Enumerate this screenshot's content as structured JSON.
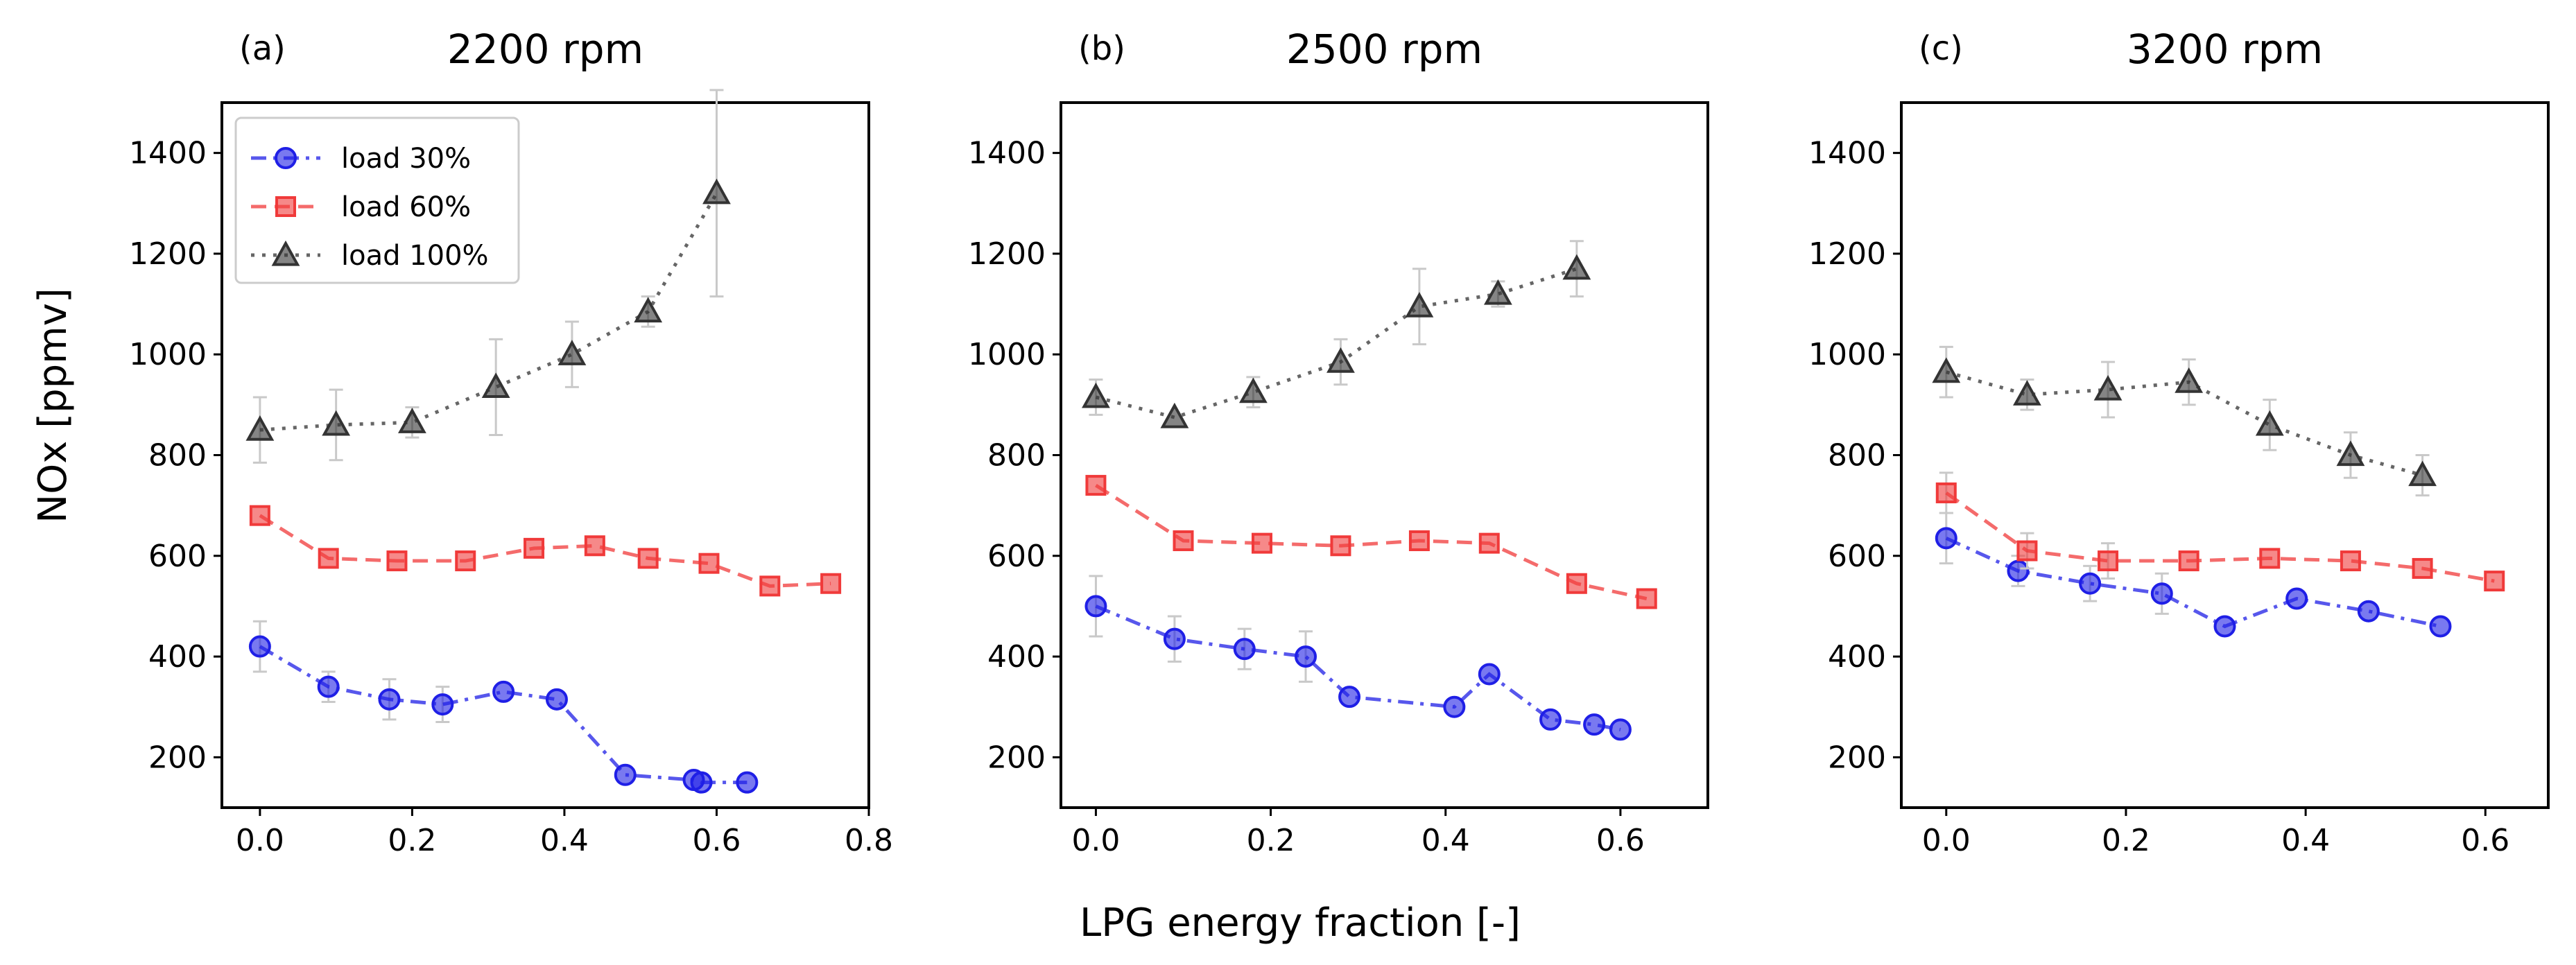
{
  "figure": {
    "xlabel": "LPG energy fraction [-]",
    "ylabel": "NOx [ppmv]"
  },
  "legend": [
    {
      "label": "load 30%",
      "series": "load30"
    },
    {
      "label": "load 60%",
      "series": "load60"
    },
    {
      "label": "load 100%",
      "series": "load100"
    }
  ],
  "series_styles": {
    "load30": {
      "color": "#1f1fe6",
      "marker": "circle",
      "dash": "dashdot"
    },
    "load60": {
      "color": "#f03a3a",
      "marker": "square",
      "dash": "dashed"
    },
    "load100": {
      "color": "#333333",
      "marker": "triangle",
      "dash": "dotted"
    }
  },
  "chart_data": [
    {
      "type": "line",
      "letter": "(a)",
      "title": "2200 rpm",
      "xlim": [
        -0.05,
        0.8
      ],
      "ylim": [
        100,
        1500
      ],
      "xticks": [
        "0.0",
        "0.2",
        "0.4",
        "0.6",
        "0.8"
      ],
      "yticks": [
        "200",
        "400",
        "600",
        "800",
        "1000",
        "1200",
        "1400"
      ],
      "series": [
        {
          "key": "load30",
          "name": "load 30%",
          "x": [
            0.0,
            0.09,
            0.17,
            0.24,
            0.32,
            0.39,
            0.48,
            0.57,
            0.58,
            0.64
          ],
          "y": [
            420,
            340,
            315,
            305,
            330,
            315,
            165,
            155,
            150,
            150
          ],
          "err": [
            50,
            30,
            40,
            35,
            0,
            0,
            0,
            0,
            0,
            0
          ]
        },
        {
          "key": "load60",
          "name": "load 60%",
          "x": [
            0.0,
            0.09,
            0.18,
            0.27,
            0.36,
            0.44,
            0.51,
            0.59,
            0.67,
            0.75
          ],
          "y": [
            680,
            595,
            590,
            590,
            615,
            620,
            595,
            585,
            540,
            545
          ],
          "err": [
            0,
            0,
            0,
            0,
            0,
            0,
            0,
            0,
            0,
            0
          ]
        },
        {
          "key": "load100",
          "name": "load 100%",
          "x": [
            0.0,
            0.1,
            0.2,
            0.31,
            0.41,
            0.51,
            0.6
          ],
          "y": [
            850,
            860,
            865,
            935,
            1000,
            1085,
            1320
          ],
          "err": [
            65,
            70,
            30,
            95,
            65,
            30,
            205
          ]
        }
      ]
    },
    {
      "type": "line",
      "letter": "(b)",
      "title": "2500 rpm",
      "xlim": [
        -0.04,
        0.7
      ],
      "ylim": [
        100,
        1500
      ],
      "xticks": [
        "0.0",
        "0.2",
        "0.4",
        "0.6"
      ],
      "yticks": [
        "200",
        "400",
        "600",
        "800",
        "1000",
        "1200",
        "1400"
      ],
      "series": [
        {
          "key": "load30",
          "name": "load 30%",
          "x": [
            0.0,
            0.09,
            0.17,
            0.24,
            0.29,
            0.41,
            0.45,
            0.52,
            0.57,
            0.6
          ],
          "y": [
            500,
            435,
            415,
            400,
            320,
            300,
            365,
            275,
            265,
            255
          ],
          "err": [
            60,
            45,
            40,
            50,
            0,
            0,
            0,
            0,
            0,
            0
          ]
        },
        {
          "key": "load60",
          "name": "load 60%",
          "x": [
            0.0,
            0.1,
            0.19,
            0.28,
            0.37,
            0.45,
            0.55,
            0.63
          ],
          "y": [
            740,
            630,
            625,
            620,
            630,
            625,
            545,
            515
          ],
          "err": [
            0,
            0,
            0,
            0,
            0,
            0,
            0,
            0
          ]
        },
        {
          "key": "load100",
          "name": "load 100%",
          "x": [
            0.0,
            0.09,
            0.18,
            0.28,
            0.37,
            0.46,
            0.55
          ],
          "y": [
            915,
            875,
            925,
            985,
            1095,
            1120,
            1170
          ],
          "err": [
            35,
            0,
            30,
            45,
            75,
            25,
            55
          ]
        }
      ]
    },
    {
      "type": "line",
      "letter": "(c)",
      "title": "3200 rpm",
      "xlim": [
        -0.05,
        0.67
      ],
      "ylim": [
        100,
        1500
      ],
      "xticks": [
        "0.0",
        "0.2",
        "0.4",
        "0.6"
      ],
      "yticks": [
        "200",
        "400",
        "600",
        "800",
        "1000",
        "1200",
        "1400"
      ],
      "series": [
        {
          "key": "load30",
          "name": "load 30%",
          "x": [
            0.0,
            0.08,
            0.16,
            0.24,
            0.31,
            0.39,
            0.47,
            0.55
          ],
          "y": [
            635,
            570,
            545,
            525,
            460,
            515,
            490,
            460
          ],
          "err": [
            50,
            30,
            35,
            40,
            0,
            0,
            0,
            0
          ]
        },
        {
          "key": "load60",
          "name": "load 60%",
          "x": [
            0.0,
            0.09,
            0.18,
            0.27,
            0.36,
            0.45,
            0.53,
            0.61
          ],
          "y": [
            725,
            610,
            590,
            590,
            595,
            590,
            575,
            550
          ],
          "err": [
            40,
            35,
            35,
            0,
            0,
            0,
            0,
            0
          ]
        },
        {
          "key": "load100",
          "name": "load 100%",
          "x": [
            0.0,
            0.09,
            0.18,
            0.27,
            0.36,
            0.45,
            0.53
          ],
          "y": [
            965,
            920,
            930,
            945,
            860,
            800,
            760
          ],
          "err": [
            50,
            30,
            55,
            45,
            50,
            45,
            40
          ]
        }
      ]
    }
  ]
}
